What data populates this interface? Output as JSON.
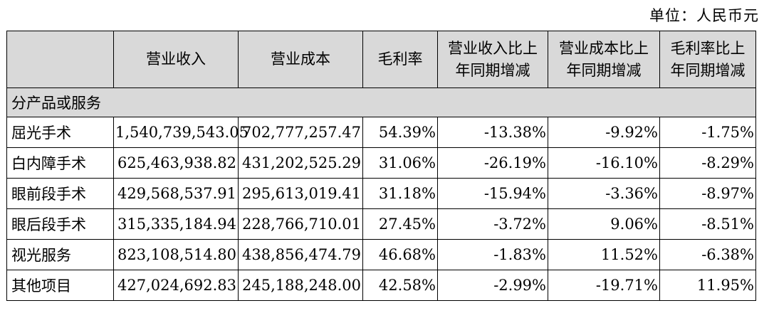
{
  "unit_label": "单位：人民币元",
  "header": {
    "c0": "",
    "c1": "营业收入",
    "c2": "营业成本",
    "c3": "毛利率",
    "c4_l1": "营业收入比上",
    "c4_l2": "年同期增减",
    "c5_l1": "营业成本比上",
    "c5_l2": "年同期增减",
    "c6_l1": "毛利率比上",
    "c6_l2": "年同期增减"
  },
  "section_label": "分产品或服务",
  "rows": [
    {
      "name": "屈光手术",
      "revenue": "1,540,739,543.05",
      "cost": "702,777,257.47",
      "margin": "54.39%",
      "rev_change": "-13.38%",
      "cost_change": "-9.92%",
      "margin_change": "-1.75%"
    },
    {
      "name": "白内障手术",
      "revenue": "625,463,938.82",
      "cost": "431,202,525.29",
      "margin": "31.06%",
      "rev_change": "-26.19%",
      "cost_change": "-16.10%",
      "margin_change": "-8.29%"
    },
    {
      "name": "眼前段手术",
      "revenue": "429,568,537.91",
      "cost": "295,613,019.41",
      "margin": "31.18%",
      "rev_change": "-15.94%",
      "cost_change": "-3.36%",
      "margin_change": "-8.97%"
    },
    {
      "name": "眼后段手术",
      "revenue": "315,335,184.94",
      "cost": "228,766,710.01",
      "margin": "27.45%",
      "rev_change": "-3.72%",
      "cost_change": "9.06%",
      "margin_change": "-8.51%"
    },
    {
      "name": "视光服务",
      "revenue": "823,108,514.80",
      "cost": "438,856,474.79",
      "margin": "46.68%",
      "rev_change": "-1.83%",
      "cost_change": "11.52%",
      "margin_change": "-6.38%"
    },
    {
      "name": "其他项目",
      "revenue": "427,024,692.83",
      "cost": "245,188,248.00",
      "margin": "42.58%",
      "rev_change": "-2.99%",
      "cost_change": "-19.71%",
      "margin_change": "11.95%"
    }
  ]
}
